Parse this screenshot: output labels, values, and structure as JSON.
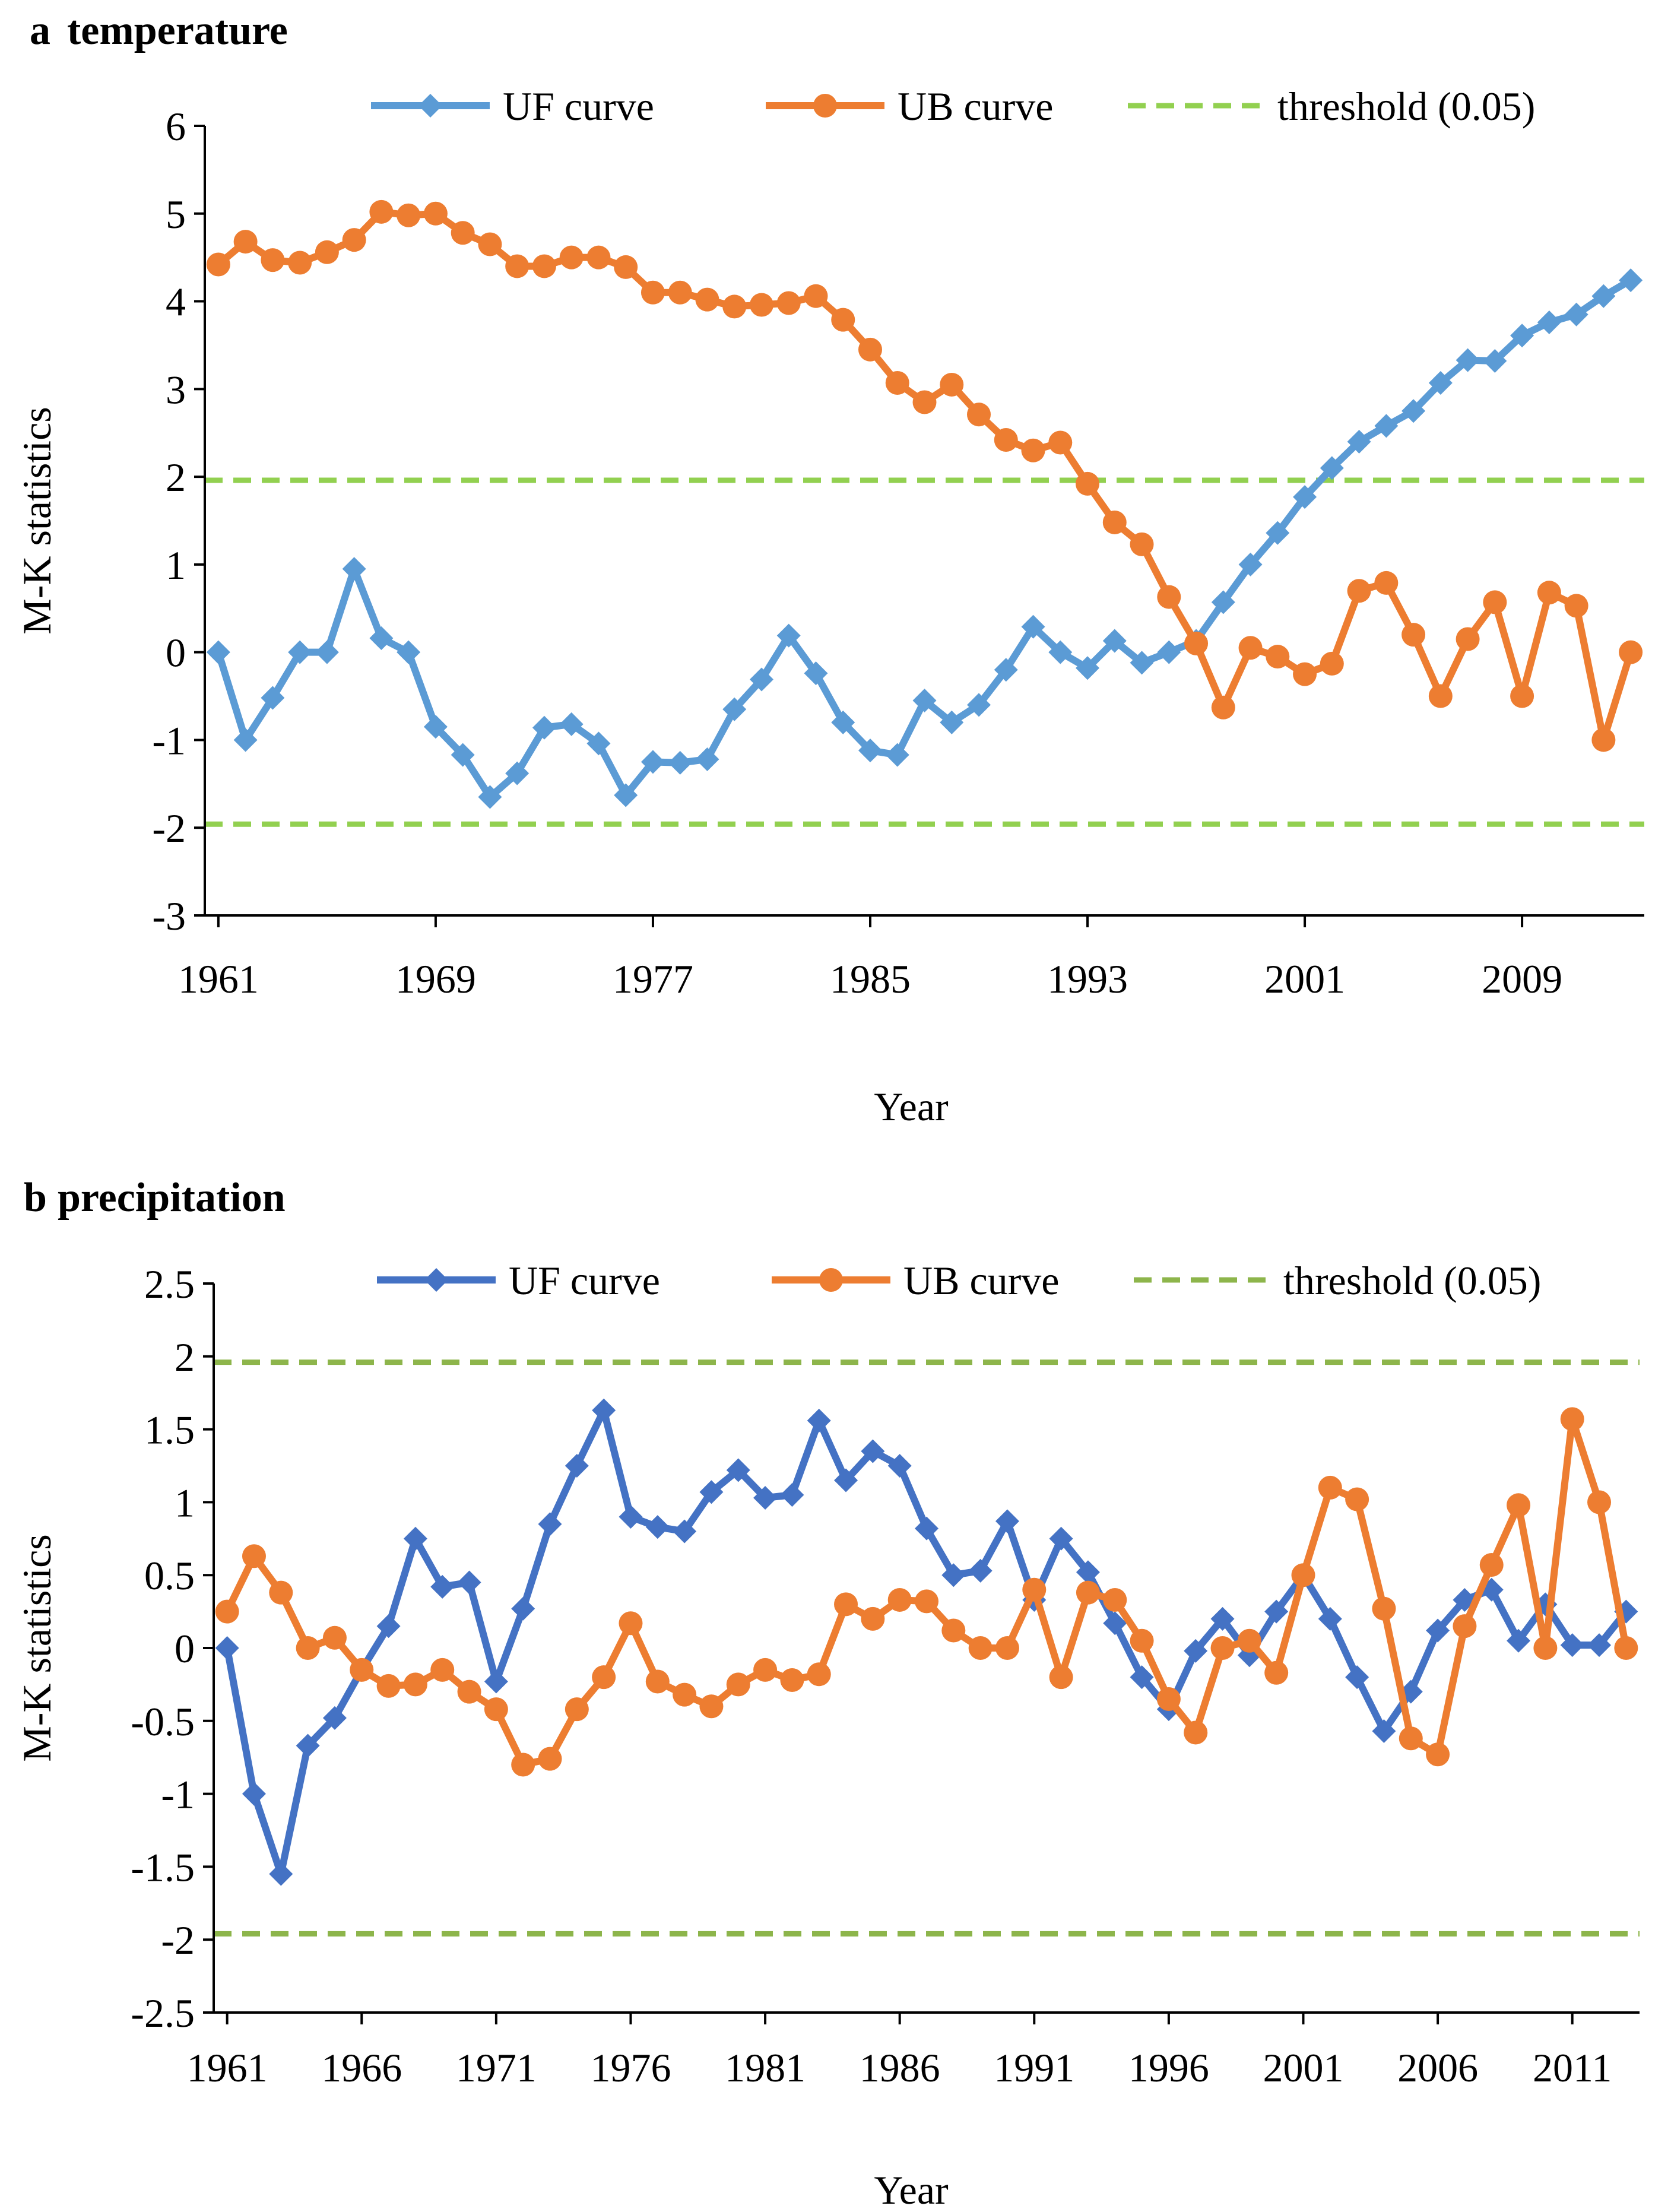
{
  "legend": {
    "uf": "UF curve",
    "ub": "UB curve",
    "threshold": "threshold (0.05)"
  },
  "colors": {
    "uf_a": "#5B9BD5",
    "ub_a": "#ED7D31",
    "threshold_a": "#92D050",
    "uf_b": "#4472C4",
    "ub_b": "#ED7D31",
    "threshold_b": "#8DB54B",
    "axis": "#000000"
  },
  "chart_data": [
    {
      "type": "line",
      "panel_label": "a",
      "title": "temperature",
      "xlabel": "Year",
      "ylabel": "M-K statistics",
      "ylim": [
        -3,
        6
      ],
      "yticks": [
        "-3",
        "-2",
        "-1",
        "0",
        "1",
        "2",
        "3",
        "4",
        "5",
        "6"
      ],
      "xtick_labels": [
        "1961",
        "1969",
        "1977",
        "1985",
        "1993",
        "2001",
        "2009"
      ],
      "x": [
        1961,
        1962,
        1963,
        1964,
        1965,
        1966,
        1967,
        1968,
        1969,
        1970,
        1971,
        1972,
        1973,
        1974,
        1975,
        1976,
        1977,
        1978,
        1979,
        1980,
        1981,
        1982,
        1983,
        1984,
        1985,
        1986,
        1987,
        1988,
        1989,
        1990,
        1991,
        1992,
        1993,
        1994,
        1995,
        1996,
        1997,
        1998,
        1999,
        2000,
        2001,
        2002,
        2003,
        2004,
        2005,
        2006,
        2007,
        2008,
        2009,
        2010,
        2011,
        2012,
        2013
      ],
      "threshold": 1.96,
      "series": [
        {
          "name": "UF curve",
          "marker": "diamond",
          "values": [
            0.0,
            -1.0,
            -0.52,
            0.0,
            0.0,
            0.95,
            0.16,
            0.0,
            -0.85,
            -1.17,
            -1.65,
            -1.38,
            -0.86,
            -0.82,
            -1.04,
            -1.63,
            -1.25,
            -1.26,
            -1.22,
            -0.65,
            -0.31,
            0.19,
            -0.24,
            -0.8,
            -1.12,
            -1.17,
            -0.55,
            -0.8,
            -0.6,
            -0.2,
            0.29,
            0.0,
            -0.18,
            0.13,
            -0.12,
            0.0,
            0.13,
            0.57,
            1.0,
            1.36,
            1.77,
            2.1,
            2.4,
            2.58,
            2.75,
            3.07,
            3.33,
            3.32,
            3.61,
            3.76,
            3.85,
            4.06,
            4.24
          ]
        },
        {
          "name": "UB curve",
          "marker": "circle",
          "values": [
            4.42,
            4.68,
            4.47,
            4.44,
            4.56,
            4.7,
            5.02,
            4.98,
            5.0,
            4.78,
            4.65,
            4.4,
            4.4,
            4.5,
            4.5,
            4.39,
            4.1,
            4.1,
            4.02,
            3.94,
            3.96,
            3.98,
            4.06,
            3.79,
            3.45,
            3.07,
            2.85,
            3.05,
            2.71,
            2.42,
            2.3,
            2.39,
            1.92,
            1.48,
            1.23,
            0.63,
            0.1,
            -0.63,
            0.05,
            -0.05,
            -0.25,
            -0.13,
            0.7,
            0.79,
            0.2,
            -0.5,
            0.15,
            0.57,
            -0.5,
            0.68,
            0.53,
            -1.0,
            0.0
          ]
        }
      ]
    },
    {
      "type": "line",
      "panel_label": "b",
      "title": "precipitation",
      "xlabel": "Year",
      "ylabel": "M-K statistics",
      "ylim": [
        -2.5,
        2.5
      ],
      "yticks": [
        "-2.5",
        "-2",
        "-1.5",
        "-1",
        "-0.5",
        "0",
        "0.5",
        "1",
        "1.5",
        "2",
        "2.5"
      ],
      "xtick_labels": [
        "1961",
        "1966",
        "1971",
        "1976",
        "1981",
        "1986",
        "1991",
        "1996",
        "2001",
        "2006",
        "2011"
      ],
      "x": [
        1961,
        1962,
        1963,
        1964,
        1965,
        1966,
        1967,
        1968,
        1969,
        1970,
        1971,
        1972,
        1973,
        1974,
        1975,
        1976,
        1977,
        1978,
        1979,
        1980,
        1981,
        1982,
        1983,
        1984,
        1985,
        1986,
        1987,
        1988,
        1989,
        1990,
        1991,
        1992,
        1993,
        1994,
        1995,
        1996,
        1997,
        1998,
        1999,
        2000,
        2001,
        2002,
        2003,
        2004,
        2005,
        2006,
        2007,
        2008,
        2009,
        2010,
        2011,
        2012,
        2013
      ],
      "threshold": 1.96,
      "series": [
        {
          "name": "UF curve",
          "marker": "diamond",
          "values": [
            0.0,
            -1.0,
            -1.55,
            -0.67,
            -0.48,
            -0.15,
            0.15,
            0.75,
            0.42,
            0.45,
            -0.23,
            0.27,
            0.85,
            1.25,
            1.63,
            0.9,
            0.83,
            0.8,
            1.07,
            1.22,
            1.03,
            1.05,
            1.56,
            1.15,
            1.35,
            1.25,
            0.82,
            0.5,
            0.53,
            0.87,
            0.33,
            0.75,
            0.52,
            0.17,
            -0.2,
            -0.42,
            -0.02,
            0.2,
            -0.05,
            0.25,
            0.5,
            0.2,
            -0.2,
            -0.57,
            -0.3,
            0.12,
            0.33,
            0.4,
            0.05,
            0.3,
            0.02,
            0.02,
            0.25
          ]
        },
        {
          "name": "UB curve",
          "marker": "circle",
          "values": [
            0.25,
            0.63,
            0.38,
            0.0,
            0.07,
            -0.15,
            -0.26,
            -0.25,
            -0.15,
            -0.3,
            -0.42,
            -0.8,
            -0.76,
            -0.42,
            -0.2,
            0.17,
            -0.23,
            -0.32,
            -0.4,
            -0.25,
            -0.15,
            -0.22,
            -0.18,
            0.3,
            0.2,
            0.33,
            0.32,
            0.12,
            0.0,
            0.0,
            0.4,
            -0.2,
            0.38,
            0.33,
            0.05,
            -0.35,
            -0.58,
            0.0,
            0.05,
            -0.17,
            0.5,
            1.1,
            1.02,
            0.27,
            -0.62,
            -0.73,
            0.15,
            0.57,
            0.98,
            0.0,
            1.57,
            1.0,
            0.0
          ]
        }
      ]
    }
  ]
}
